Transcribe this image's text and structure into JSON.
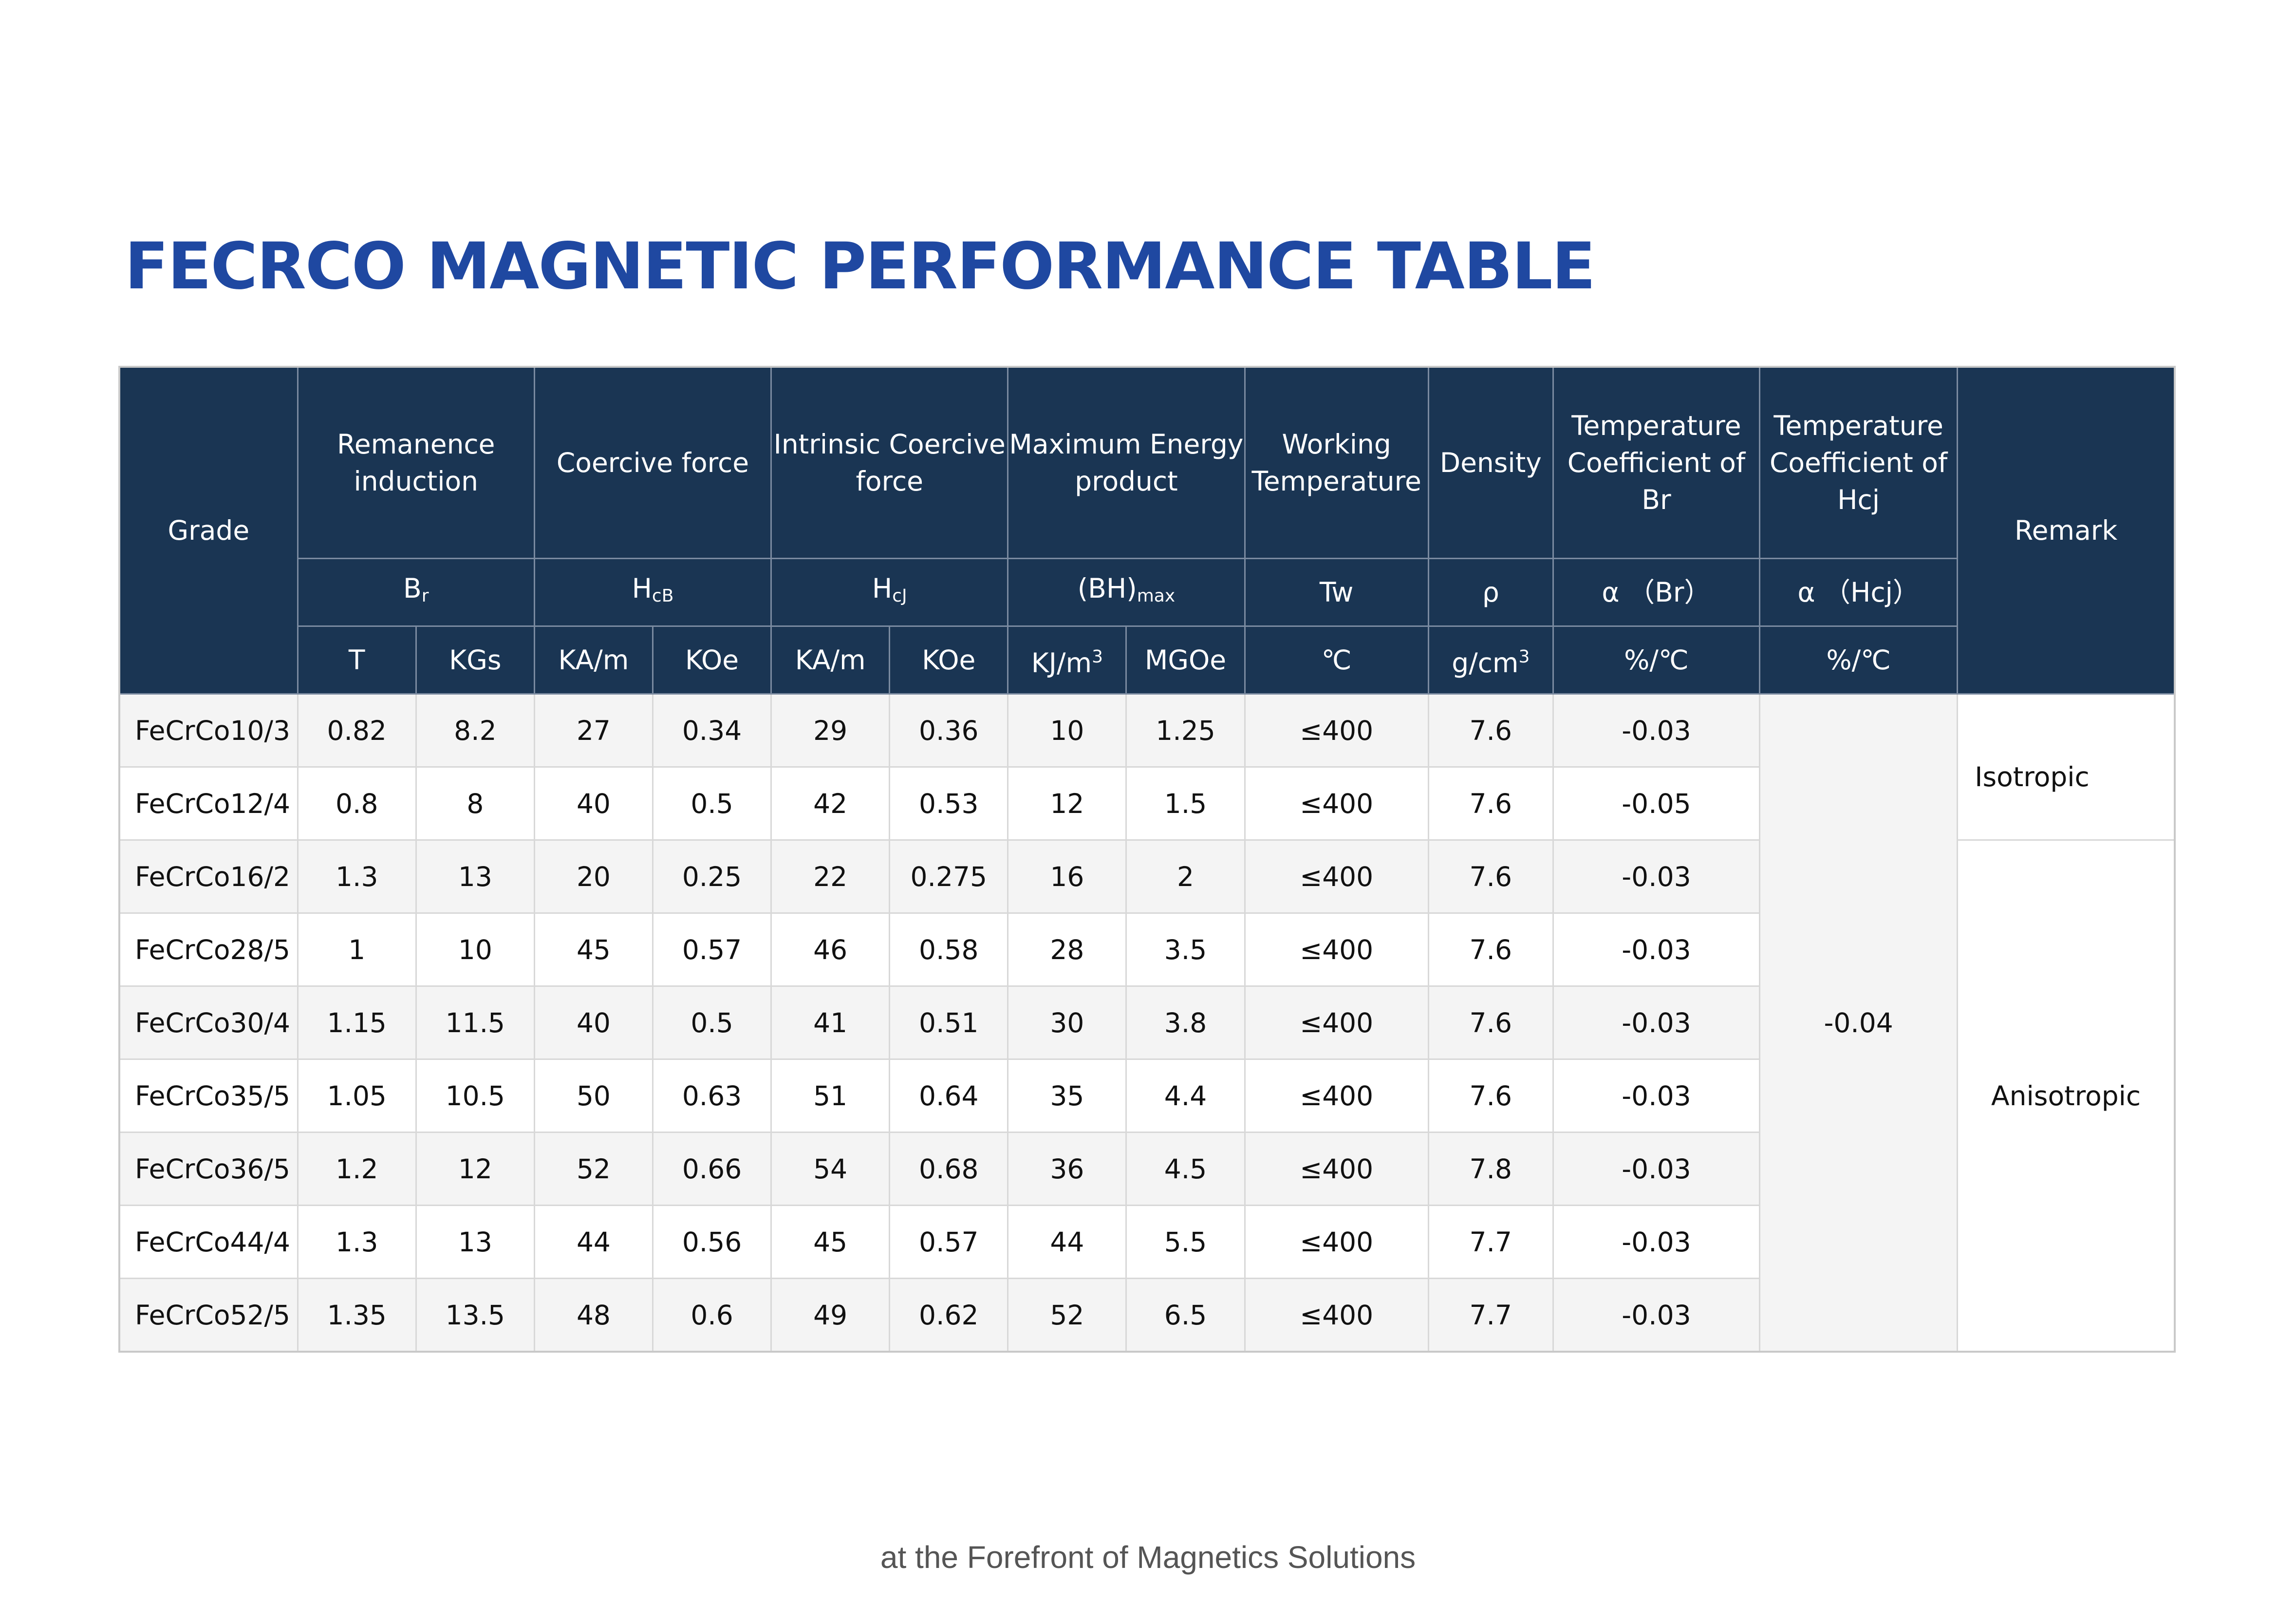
{
  "title": "FECRCO MAGNETIC PERFORMANCE TABLE",
  "footer": "at the Forefront of Magnetics Solutions",
  "header": {
    "grade": "Grade",
    "remark": "Remark",
    "groups": {
      "br": {
        "name": "Remanence induction",
        "symbol": "B",
        "symbol_sub": "r",
        "units": [
          "T",
          "KGs"
        ]
      },
      "hcb": {
        "name": "Coercive force",
        "symbol": "H",
        "symbol_sub": "cB",
        "units": [
          "KA/m",
          "KOe"
        ]
      },
      "hcj": {
        "name": "Intrinsic Coercive force",
        "symbol": "H",
        "symbol_sub": "cJ",
        "units": [
          "KA/m",
          "KOe"
        ]
      },
      "bh": {
        "name": "Maximum Energy product",
        "symbol": "(BH)",
        "symbol_sub": "max",
        "unit1_base": "KJ/m",
        "unit1_sup": "3",
        "unit2": "MGOe"
      },
      "tw": {
        "name": "Working Temperature",
        "symbol": "Tw",
        "unit": "℃"
      },
      "density": {
        "name": "Density",
        "symbol": "ρ",
        "unit_base": "g/cm",
        "unit_sup": "3"
      },
      "tc_br": {
        "name": "Temperature Coefficient of Br",
        "symbol": "α （Br）",
        "unit": "%/℃"
      },
      "tc_hcj": {
        "name": "Temperature Coefficient of Hcj",
        "symbol": "α （Hcj）",
        "unit": "%/℃"
      }
    }
  },
  "rows": [
    {
      "grade": "FeCrCo10/3",
      "t": "0.82",
      "kgs": "8.2",
      "hcb_kam": "27",
      "hcb_koe": "0.34",
      "hcj_kam": "29",
      "hcj_koe": "0.36",
      "bh_kj": "10",
      "bh_mgoe": "1.25",
      "tw": "≤400",
      "density": "7.6",
      "tc_br": "-0.03"
    },
    {
      "grade": "FeCrCo12/4",
      "t": "0.8",
      "kgs": "8",
      "hcb_kam": "40",
      "hcb_koe": "0.5",
      "hcj_kam": "42",
      "hcj_koe": "0.53",
      "bh_kj": "12",
      "bh_mgoe": "1.5",
      "tw": "≤400",
      "density": "7.6",
      "tc_br": "-0.05"
    },
    {
      "grade": "FeCrCo16/2",
      "t": "1.3",
      "kgs": "13",
      "hcb_kam": "20",
      "hcb_koe": "0.25",
      "hcj_kam": "22",
      "hcj_koe": "0.275",
      "bh_kj": "16",
      "bh_mgoe": "2",
      "tw": "≤400",
      "density": "7.6",
      "tc_br": "-0.03"
    },
    {
      "grade": "FeCrCo28/5",
      "t": "1",
      "kgs": "10",
      "hcb_kam": "45",
      "hcb_koe": "0.57",
      "hcj_kam": "46",
      "hcj_koe": "0.58",
      "bh_kj": "28",
      "bh_mgoe": "3.5",
      "tw": "≤400",
      "density": "7.6",
      "tc_br": "-0.03"
    },
    {
      "grade": "FeCrCo30/4",
      "t": "1.15",
      "kgs": "11.5",
      "hcb_kam": "40",
      "hcb_koe": "0.5",
      "hcj_kam": "41",
      "hcj_koe": "0.51",
      "bh_kj": "30",
      "bh_mgoe": "3.8",
      "tw": "≤400",
      "density": "7.6",
      "tc_br": "-0.03"
    },
    {
      "grade": "FeCrCo35/5",
      "t": "1.05",
      "kgs": "10.5",
      "hcb_kam": "50",
      "hcb_koe": "0.63",
      "hcj_kam": "51",
      "hcj_koe": "0.64",
      "bh_kj": "35",
      "bh_mgoe": "4.4",
      "tw": "≤400",
      "density": "7.6",
      "tc_br": "-0.03"
    },
    {
      "grade": "FeCrCo36/5",
      "t": "1.2",
      "kgs": "12",
      "hcb_kam": "52",
      "hcb_koe": "0.66",
      "hcj_kam": "54",
      "hcj_koe": "0.68",
      "bh_kj": "36",
      "bh_mgoe": "4.5",
      "tw": "≤400",
      "density": "7.8",
      "tc_br": "-0.03"
    },
    {
      "grade": "FeCrCo44/4",
      "t": "1.3",
      "kgs": "13",
      "hcb_kam": "44",
      "hcb_koe": "0.56",
      "hcj_kam": "45",
      "hcj_koe": "0.57",
      "bh_kj": "44",
      "bh_mgoe": "5.5",
      "tw": "≤400",
      "density": "7.7",
      "tc_br": "-0.03"
    },
    {
      "grade": "FeCrCo52/5",
      "t": "1.35",
      "kgs": "13.5",
      "hcb_kam": "48",
      "hcb_koe": "0.6",
      "hcj_kam": "49",
      "hcj_koe": "0.62",
      "bh_kj": "52",
      "bh_mgoe": "6.5",
      "tw": "≤400",
      "density": "7.7",
      "tc_br": "-0.03"
    }
  ],
  "tc_hcj_value": "-0.04",
  "remarks": {
    "isotropic": "Isotropic",
    "anisotropic": "Anisotropic"
  },
  "colors": {
    "title": "#1f48a1",
    "header_bg": "#1a3553",
    "row_alt": "#f4f4f4",
    "footer": "#555555"
  }
}
